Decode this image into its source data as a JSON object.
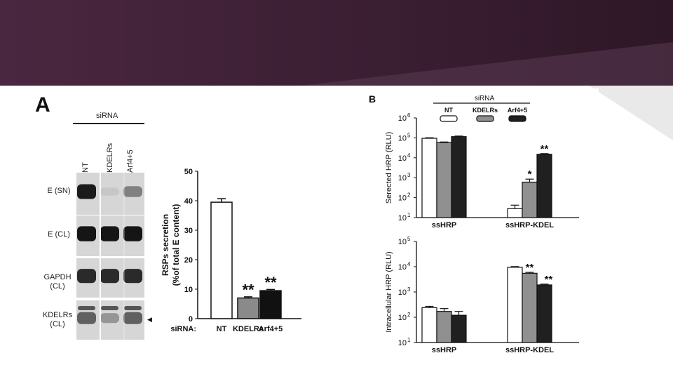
{
  "theme": {
    "banner_color": "#3b1e33",
    "accent_light": "#e9e9e9"
  },
  "panel_a": {
    "letter": "A",
    "sirna_label": "siRNA",
    "lanes": [
      "NT",
      "KDELRs",
      "Arf4+5"
    ],
    "blot_rows": [
      {
        "label_line1": "E (SN)",
        "label_line2": "",
        "intensity": [
          0.92,
          0.12,
          0.45
        ]
      },
      {
        "label_line1": "E (CL)",
        "label_line2": "",
        "intensity": [
          0.95,
          0.95,
          0.95
        ]
      },
      {
        "label_line1": "GAPDH",
        "label_line2": "(CL)",
        "intensity": [
          0.85,
          0.85,
          0.85
        ]
      },
      {
        "label_line1": "KDELRs",
        "label_line2": "(CL)",
        "intensity": [
          0.6,
          0.35,
          0.6
        ]
      }
    ]
  },
  "panel_b": {
    "letter": "B",
    "sirna_label": "siRNA",
    "legend": [
      {
        "label": "NT",
        "color": "#ffffff"
      },
      {
        "label": "KDELRs",
        "color": "#909090"
      },
      {
        "label": "Arf4+5",
        "color": "#202020"
      }
    ]
  },
  "chart_data": [
    {
      "type": "bar",
      "ylabel_line1": "RSPs secretion",
      "ylabel_line2": "(%of total E content)",
      "x_prefix": "siRNA:",
      "categories": [
        "NT",
        "KDELRs",
        "Arf4+5"
      ],
      "values": [
        39.5,
        7,
        9.5
      ],
      "errors": [
        1.2,
        0.4,
        0.4
      ],
      "colors": [
        "#ffffff",
        "#8a8a8a",
        "#111111"
      ],
      "significance": [
        "",
        "**",
        "**"
      ],
      "ylim": [
        0,
        50
      ],
      "yticks": [
        "0",
        "10",
        "20",
        "30",
        "40",
        "50"
      ]
    },
    {
      "type": "bar",
      "scale": "log",
      "ylabel": "Serected HRP (RLU)",
      "groups": [
        "ssHRP",
        "ssHRP-KDEL"
      ],
      "series": [
        {
          "name": "NT",
          "color": "#ffffff",
          "values": [
            95000,
            28
          ],
          "errors": [
            6000,
            14
          ]
        },
        {
          "name": "KDELRs",
          "color": "#909090",
          "values": [
            58000,
            600
          ],
          "errors": [
            4000,
            250
          ]
        },
        {
          "name": "Arf4+5",
          "color": "#202020",
          "values": [
            115000,
            15000
          ],
          "errors": [
            8000,
            1200
          ]
        }
      ],
      "significance": [
        [
          "",
          "",
          ""
        ],
        [
          "",
          "*",
          "**"
        ]
      ],
      "ylim_exp": [
        1,
        6
      ],
      "ytick_base": "10",
      "ytick_exps": [
        "1",
        "2",
        "3",
        "4",
        "5",
        "6"
      ]
    },
    {
      "type": "bar",
      "scale": "log",
      "ylabel": "Intracellular HRP (RLU)",
      "groups": [
        "ssHRP",
        "ssHRP-KDEL"
      ],
      "series": [
        {
          "name": "NT",
          "color": "#ffffff",
          "values": [
            240,
            9500
          ],
          "errors": [
            30,
            600
          ]
        },
        {
          "name": "KDELRs",
          "color": "#909090",
          "values": [
            170,
            5500
          ],
          "errors": [
            50,
            500
          ]
        },
        {
          "name": "Arf4+5",
          "color": "#202020",
          "values": [
            120,
            1900
          ],
          "errors": [
            50,
            150
          ]
        }
      ],
      "significance": [
        [
          "",
          "",
          ""
        ],
        [
          "",
          "**",
          "**"
        ]
      ],
      "ylim_exp": [
        1,
        5
      ],
      "ytick_base": "10",
      "ytick_exps": [
        "1",
        "2",
        "3",
        "4",
        "5"
      ]
    }
  ]
}
